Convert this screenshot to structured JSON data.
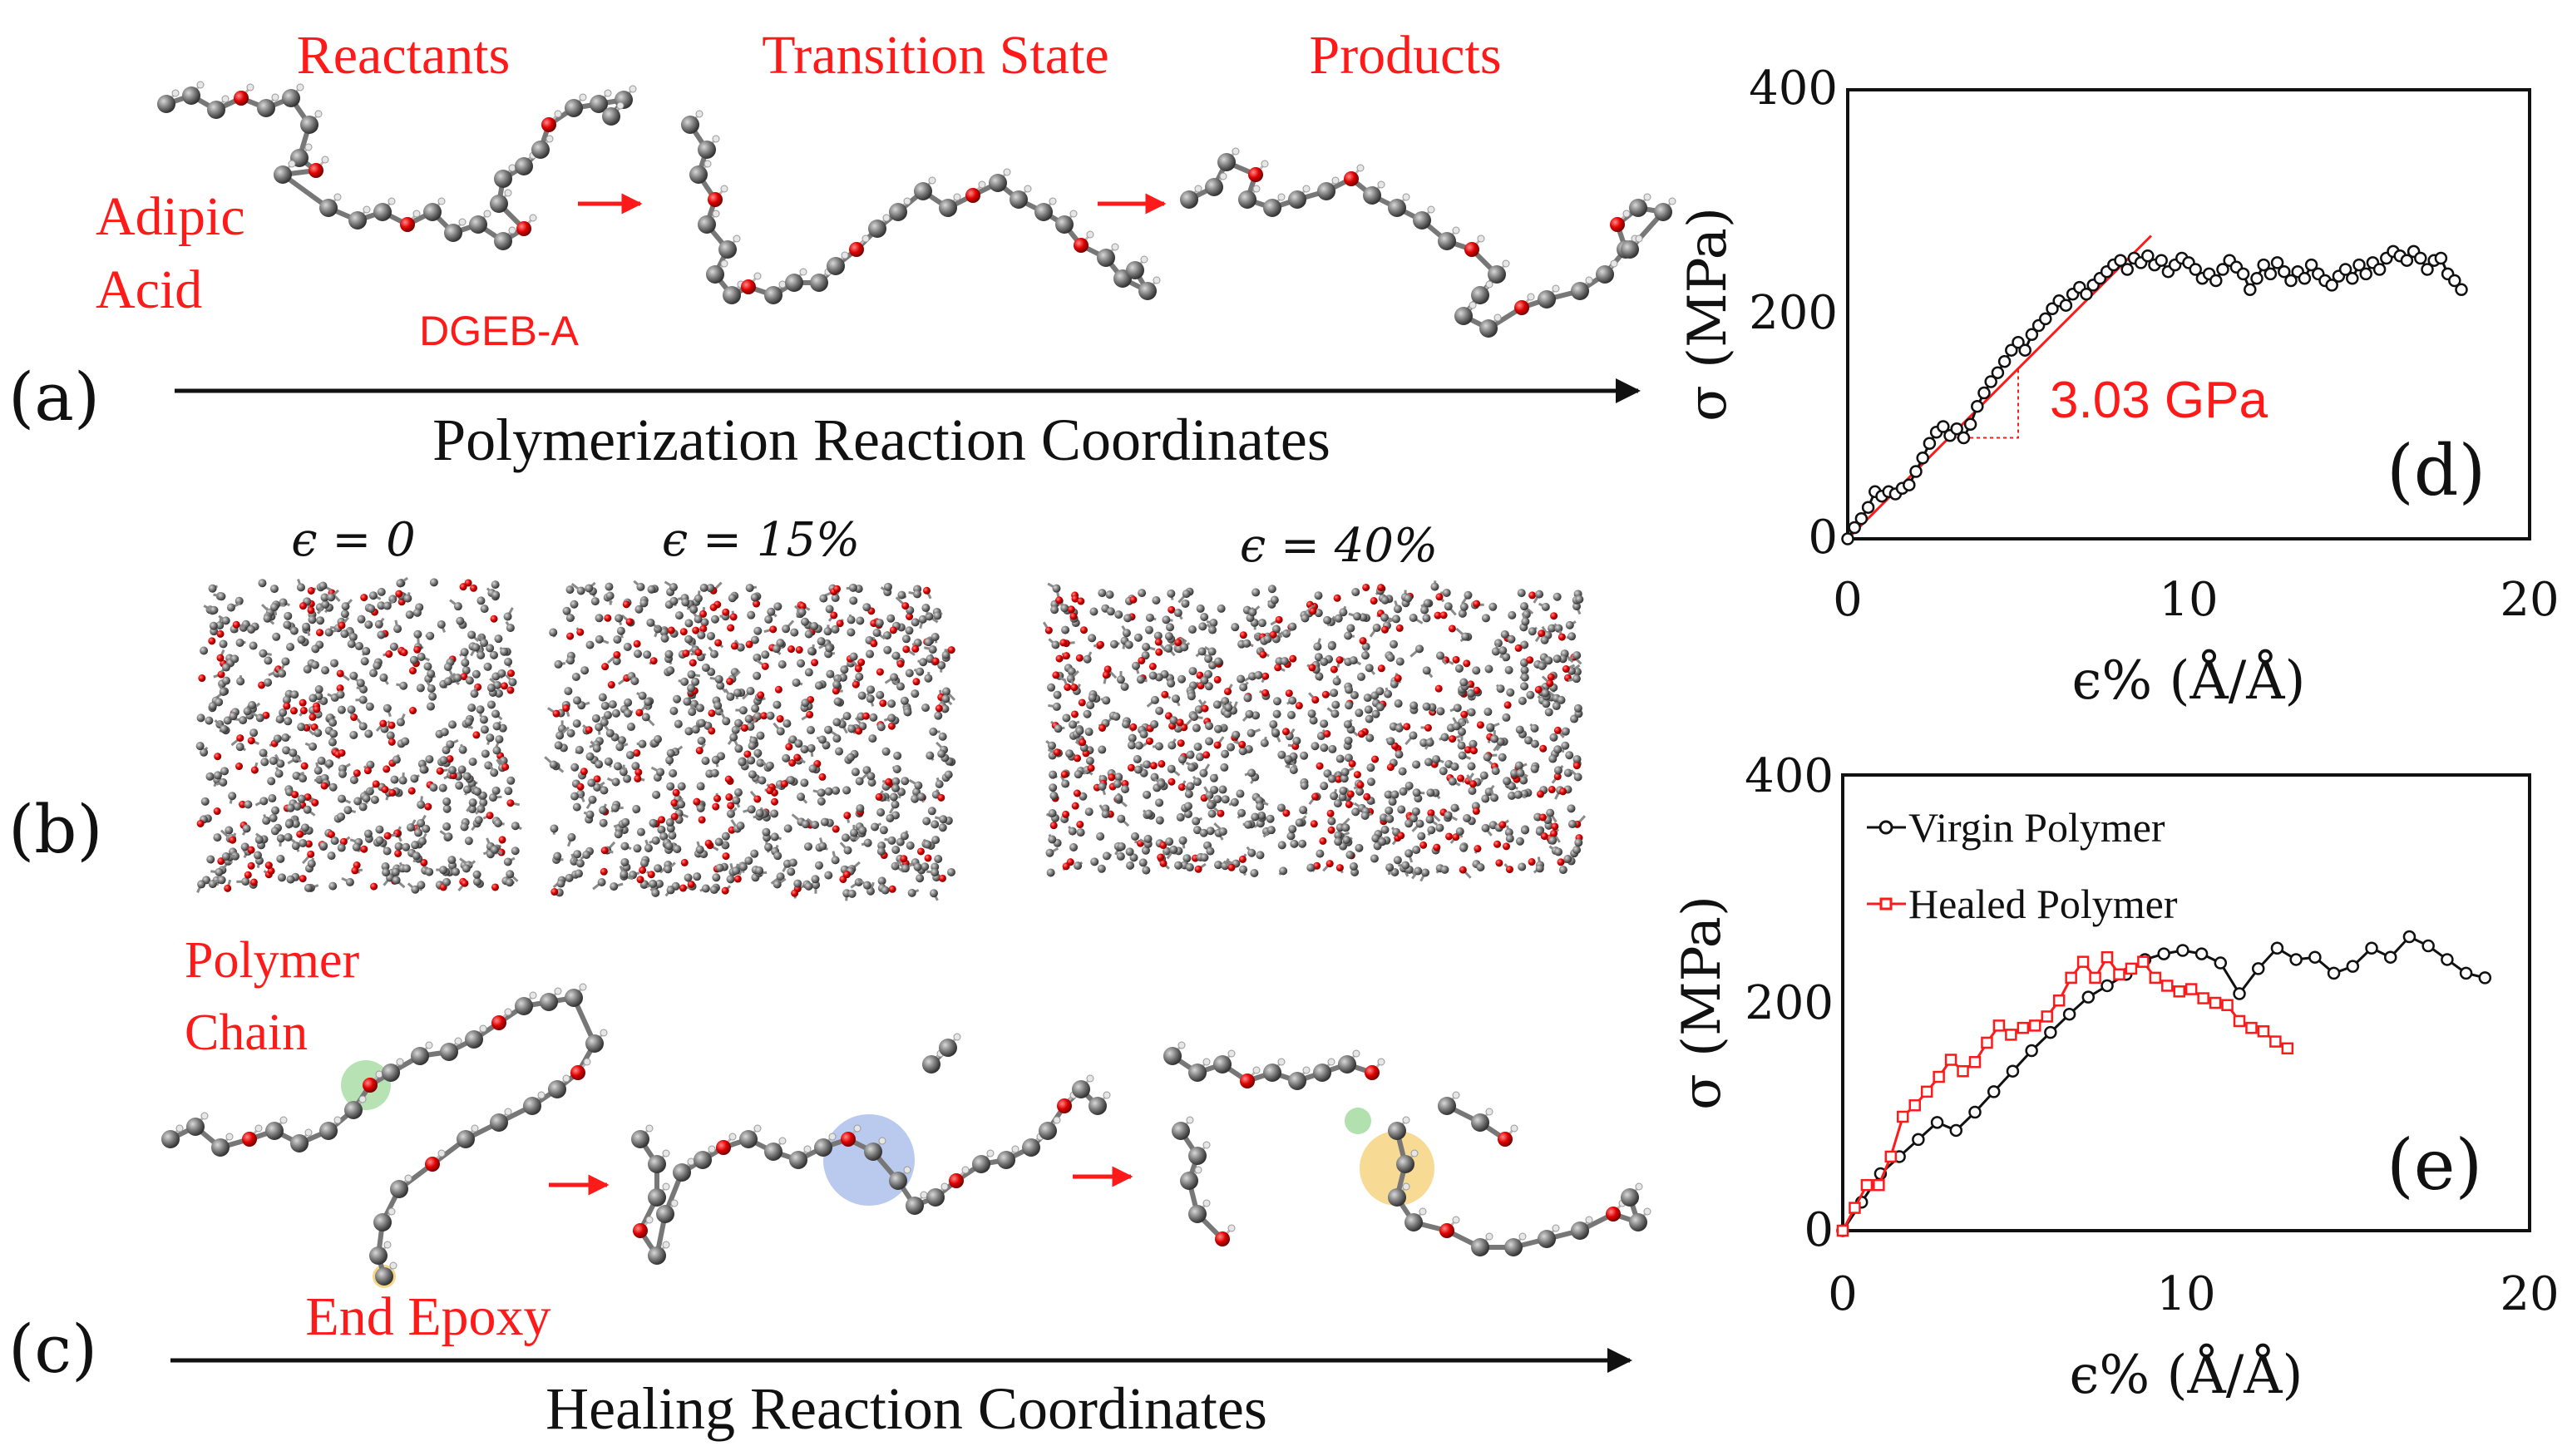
{
  "panel_a": {
    "label": "(a)",
    "stage_labels": [
      "Reactants",
      "Transition State",
      "Products"
    ],
    "molecule_labels": {
      "adipic_line1": "Adipic",
      "adipic_line2": "Acid",
      "dgeba": "DGEB-A"
    },
    "axis_label": "Polymerization Reaction Coordinates"
  },
  "panel_b": {
    "label": "(b)",
    "strain_labels": [
      "ϵ = 0",
      "ϵ = 15%",
      "ϵ = 40%"
    ]
  },
  "panel_c": {
    "label": "(c)",
    "molecule_labels": {
      "chain_line1": "Polymer",
      "chain_line2": "Chain",
      "epoxy": "End Epoxy"
    },
    "axis_label": "Healing Reaction Coordinates"
  },
  "colors": {
    "annotation_red": "#ff1a1a",
    "virgin": "#111111",
    "healed": "#ff1a1a",
    "green_site": "#9fd89a",
    "blue_site": "#9db4e8",
    "yellow_site": "#f5d27a"
  },
  "chart_data": [
    {
      "id": "d",
      "type": "line",
      "panel_label": "(d)",
      "xlabel": "ϵ% (Å/Å)",
      "ylabel": "σ (MPa)",
      "xlim": [
        0,
        20
      ],
      "ylim": [
        0,
        400
      ],
      "xticks": [
        "0",
        "10",
        "20"
      ],
      "yticks": [
        "0",
        "200",
        "400"
      ],
      "annotation": "3.03 GPa",
      "fit_line": {
        "x": [
          0,
          8.9
        ],
        "y": [
          0,
          270
        ]
      },
      "series": [
        {
          "name": "Virgin Polymer",
          "x": [
            0,
            0.2,
            0.4,
            0.6,
            0.8,
            1.0,
            1.2,
            1.4,
            1.6,
            1.8,
            2.0,
            2.2,
            2.4,
            2.6,
            2.8,
            3.0,
            3.2,
            3.4,
            3.6,
            3.8,
            4.0,
            4.2,
            4.4,
            4.6,
            4.8,
            5.0,
            5.2,
            5.4,
            5.6,
            5.8,
            6.0,
            6.2,
            6.4,
            6.6,
            6.8,
            7.0,
            7.2,
            7.4,
            7.6,
            7.8,
            8.0,
            8.2,
            8.4,
            8.6,
            8.8,
            9.0,
            9.2,
            9.4,
            9.6,
            9.8,
            10.0,
            10.2,
            10.4,
            10.6,
            10.8,
            11.0,
            11.2,
            11.4,
            11.6,
            11.8,
            12.0,
            12.2,
            12.4,
            12.6,
            12.8,
            13.0,
            13.2,
            13.4,
            13.6,
            13.8,
            14.0,
            14.2,
            14.4,
            14.6,
            14.8,
            15.0,
            15.2,
            15.4,
            15.6,
            15.8,
            16.0,
            16.2,
            16.4,
            16.6,
            16.8,
            17.0,
            17.2,
            17.4,
            17.6,
            17.8,
            18.0
          ],
          "y": [
            0,
            10,
            18,
            28,
            42,
            38,
            42,
            40,
            45,
            48,
            60,
            72,
            85,
            95,
            100,
            92,
            98,
            90,
            102,
            118,
            130,
            140,
            148,
            158,
            168,
            175,
            168,
            182,
            190,
            196,
            205,
            212,
            208,
            218,
            224,
            218,
            226,
            232,
            238,
            244,
            248,
            240,
            250,
            246,
            252,
            244,
            248,
            238,
            244,
            250,
            246,
            240,
            232,
            236,
            230,
            240,
            248,
            242,
            236,
            222,
            232,
            244,
            236,
            246,
            238,
            230,
            238,
            232,
            244,
            236,
            230,
            226,
            234,
            240,
            232,
            244,
            236,
            246,
            240,
            250,
            256,
            252,
            248,
            256,
            250,
            240,
            248,
            250,
            236,
            230,
            222
          ]
        }
      ]
    },
    {
      "id": "e",
      "type": "line",
      "panel_label": "(e)",
      "xlabel": "ϵ% (Å/Å)",
      "ylabel": "σ (MPa)",
      "xlim": [
        0,
        20
      ],
      "ylim": [
        0,
        400
      ],
      "xticks": [
        "0",
        "10",
        "20"
      ],
      "yticks": [
        "0",
        "200",
        "400"
      ],
      "legend_position": "top-left",
      "series": [
        {
          "name": "Virgin Polymer",
          "x": [
            0,
            0.55,
            1.1,
            1.65,
            2.2,
            2.75,
            3.3,
            3.85,
            4.4,
            4.95,
            5.5,
            6.05,
            6.6,
            7.15,
            7.7,
            8.25,
            8.8,
            9.35,
            9.9,
            10.45,
            11.0,
            11.55,
            12.1,
            12.65,
            13.2,
            13.75,
            14.3,
            14.85,
            15.4,
            15.95,
            16.5,
            17.05,
            17.6,
            18.15,
            18.7
          ],
          "y": [
            0,
            25,
            50,
            65,
            80,
            95,
            88,
            104,
            122,
            140,
            158,
            174,
            190,
            205,
            215,
            225,
            238,
            243,
            246,
            243,
            235,
            208,
            230,
            248,
            238,
            240,
            226,
            232,
            248,
            240,
            258,
            250,
            238,
            226,
            222
          ]
        },
        {
          "name": "Healed Polymer",
          "x": [
            0,
            0.35,
            0.7,
            1.05,
            1.4,
            1.75,
            2.1,
            2.45,
            2.8,
            3.15,
            3.5,
            3.85,
            4.2,
            4.55,
            4.9,
            5.25,
            5.6,
            5.95,
            6.3,
            6.65,
            7.0,
            7.35,
            7.7,
            8.05,
            8.4,
            8.75,
            9.1,
            9.45,
            9.8,
            10.15,
            10.5,
            10.85,
            11.2,
            11.55,
            11.9,
            12.25,
            12.6,
            12.95
          ],
          "y": [
            0,
            20,
            40,
            40,
            65,
            100,
            110,
            122,
            135,
            150,
            140,
            148,
            165,
            180,
            172,
            178,
            180,
            188,
            202,
            222,
            236,
            222,
            240,
            225,
            230,
            236,
            222,
            215,
            210,
            212,
            204,
            200,
            198,
            184,
            178,
            175,
            166,
            160
          ]
        }
      ]
    }
  ]
}
